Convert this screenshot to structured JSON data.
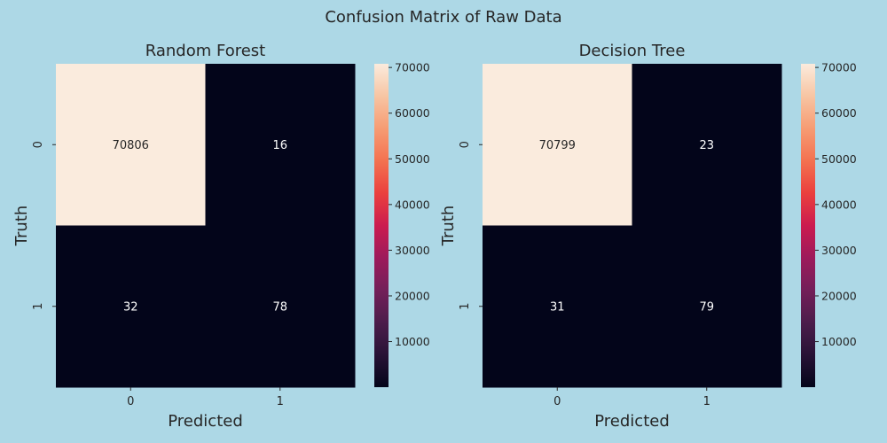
{
  "title": "Confusion Matrix of Raw Data",
  "colors": {
    "background": "#add8e6",
    "text": "#262626",
    "cell_high": "#faebdd",
    "cell_low": "#03051a"
  },
  "chart_data": [
    {
      "type": "heatmap",
      "title": "Random Forest",
      "xlabel": "Predicted",
      "ylabel": "Truth",
      "x_tick_labels": [
        "0",
        "1"
      ],
      "y_tick_labels": [
        "0",
        "1"
      ],
      "values": [
        [
          70806,
          16
        ],
        [
          32,
          78
        ]
      ],
      "cell_labels": [
        [
          "70806",
          "16"
        ],
        [
          "32",
          "78"
        ]
      ],
      "colorbar": {
        "ticks": [
          10000,
          20000,
          30000,
          40000,
          50000,
          60000,
          70000
        ],
        "tick_labels": [
          "10000",
          "20000",
          "30000",
          "40000",
          "50000",
          "60000",
          "70000"
        ],
        "range": [
          16,
          70806
        ],
        "colormap": "rocket"
      }
    },
    {
      "type": "heatmap",
      "title": "Decision Tree",
      "xlabel": "Predicted",
      "ylabel": "Truth",
      "x_tick_labels": [
        "0",
        "1"
      ],
      "y_tick_labels": [
        "0",
        "1"
      ],
      "values": [
        [
          70799,
          23
        ],
        [
          31,
          79
        ]
      ],
      "cell_labels": [
        [
          "70799",
          "23"
        ],
        [
          "31",
          "79"
        ]
      ],
      "colorbar": {
        "ticks": [
          10000,
          20000,
          30000,
          40000,
          50000,
          60000,
          70000
        ],
        "tick_labels": [
          "10000",
          "20000",
          "30000",
          "40000",
          "50000",
          "60000",
          "70000"
        ],
        "range": [
          23,
          70799
        ],
        "colormap": "rocket"
      }
    }
  ]
}
